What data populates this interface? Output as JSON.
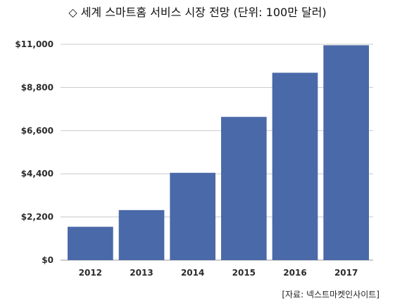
{
  "chart_data": {
    "type": "bar",
    "title": "◇ 세계 스마트홈 서비스 시장 전망 (단위: 100만 달러)",
    "source": "[자료: 넥스트마켓인사이트]",
    "categories": [
      "2012",
      "2013",
      "2014",
      "2015",
      "2016",
      "2017"
    ],
    "values": [
      1700,
      2550,
      4450,
      7300,
      9550,
      10950
    ],
    "ylim": [
      0,
      11000
    ],
    "yticks": [
      0,
      2200,
      4400,
      6600,
      8800,
      11000
    ],
    "ytick_labels": [
      "$0",
      "$2,200",
      "$4,400",
      "$6,600",
      "$8,800",
      "$11,000"
    ],
    "grid": true,
    "bar_color": "#4a69a8",
    "grid_color": "#c8c8c8"
  }
}
